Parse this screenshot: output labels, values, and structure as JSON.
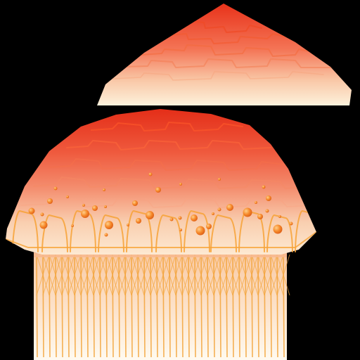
{
  "colors": {
    "background": "#000000",
    "cap_top": "#e8321a",
    "cap_mid": "#f27a5a",
    "cap_low": "#fbe6cf",
    "tentacle": "#f3a43a",
    "tentacle_light": "#ffe9a8",
    "bubble": "#f6892a",
    "scale_line": "#f45a2a"
  },
  "sprites": [
    {
      "name": "small-cap-texture",
      "icon": "jellyfish-cap-icon"
    },
    {
      "name": "jellyfish-body-texture",
      "icon": "jellyfish-body-icon"
    }
  ]
}
